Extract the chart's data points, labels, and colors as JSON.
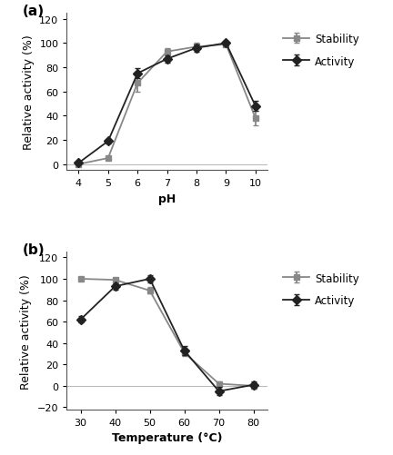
{
  "panel_a": {
    "title": "(a)",
    "xlabel": "pH",
    "ylabel": "Relative activity (%)",
    "xlim": [
      3.6,
      10.4
    ],
    "ylim": [
      -5,
      125
    ],
    "yticks": [
      0,
      20,
      40,
      60,
      80,
      100,
      120
    ],
    "xticks": [
      4,
      5,
      6,
      7,
      8,
      9,
      10
    ],
    "activity": {
      "x": [
        4,
        5,
        6,
        7,
        8,
        9,
        10
      ],
      "y": [
        1,
        19,
        75,
        87,
        96,
        100,
        48
      ],
      "yerr": [
        1,
        2,
        4,
        3,
        3,
        2,
        4
      ],
      "color": "#222222",
      "marker": "D",
      "label": "Activity"
    },
    "stability": {
      "x": [
        4,
        5,
        6,
        7,
        8,
        9,
        10
      ],
      "y": [
        0,
        5,
        67,
        93,
        97,
        99,
        38
      ],
      "yerr": [
        1,
        1,
        7,
        3,
        3,
        2,
        6
      ],
      "color": "#888888",
      "marker": "s",
      "label": "Stability"
    }
  },
  "panel_b": {
    "title": "(b)",
    "xlabel": "Temperature (°C)",
    "ylabel": "Relative activity (%)",
    "xlim": [
      26,
      84
    ],
    "ylim": [
      -22,
      125
    ],
    "yticks": [
      -20,
      0,
      20,
      40,
      60,
      80,
      100,
      120
    ],
    "xticks": [
      30,
      40,
      50,
      60,
      70,
      80
    ],
    "activity": {
      "x": [
        30,
        40,
        50,
        60,
        70,
        80
      ],
      "y": [
        62,
        93,
        100,
        33,
        -5,
        1
      ],
      "yerr": [
        3,
        3,
        3,
        4,
        4,
        3
      ],
      "color": "#222222",
      "marker": "D",
      "label": "Activity"
    },
    "stability": {
      "x": [
        30,
        40,
        50,
        60,
        70,
        80
      ],
      "y": [
        100,
        99,
        89,
        31,
        2,
        0
      ],
      "yerr": [
        2,
        2,
        3,
        3,
        2,
        3
      ],
      "color": "#888888",
      "marker": "s",
      "label": "Stability"
    }
  }
}
